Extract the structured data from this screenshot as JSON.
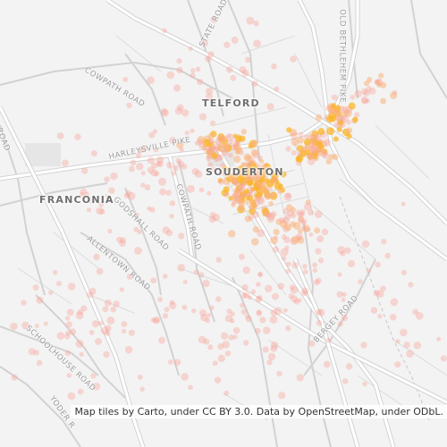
{
  "labels": {
    "towns": {
      "telford": "TELFORD",
      "souderton": "SOUDERTON",
      "franconia": "FRANCONIA"
    },
    "roads": {
      "cowpath_nw": "COWPATH ROAD",
      "cowpath_center": "COWPATH ROAD",
      "state_road": "STATE ROAD",
      "old_bethlehem_pike": "OLD BETHLEHEM PIKE",
      "harleysville_pike": "HARLEYSVILLE PIKE",
      "godshall_road": "GODSHALL ROAD",
      "allentown_road": "ALLENTOWN ROAD",
      "schoolhouse_road": "SCHOOLHOUSE ROAD",
      "bergey_road": "BERGEY ROAD",
      "yoder_road": "YODER R",
      "edge_road": "N ROAD"
    }
  },
  "attribution": "Map tiles by Carto, under CC BY 3.0. Data by OpenStreetMap, under ODbL.",
  "heat_colors": {
    "low": "#f7a59a",
    "mid": "#f9b37c",
    "high": "#fbb52a"
  }
}
